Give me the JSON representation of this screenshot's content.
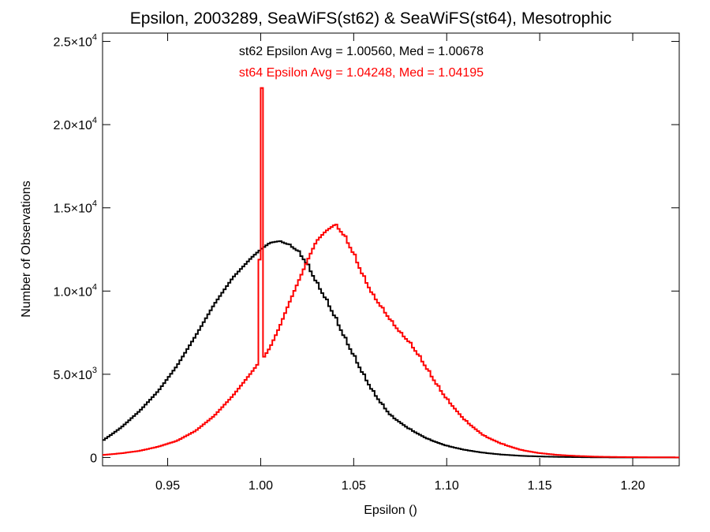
{
  "colors": {
    "st62": "#000000",
    "st64": "#ff0000",
    "axis": "#000000",
    "background": "#ffffff"
  },
  "chart_data": {
    "type": "line",
    "title": "Epsilon, 2003289, SeaWiFS(st62) & SeaWiFS(st64), Mesotrophic",
    "xlabel": "Epsilon ()",
    "ylabel": "Number of Observations",
    "xlim": [
      0.915,
      1.225
    ],
    "ylim": [
      -500,
      25500
    ],
    "x_ticks": [
      {
        "value": 0.95,
        "label": "0.95"
      },
      {
        "value": 1.0,
        "label": "1.00"
      },
      {
        "value": 1.05,
        "label": "1.05"
      },
      {
        "value": 1.1,
        "label": "1.10"
      },
      {
        "value": 1.15,
        "label": "1.15"
      },
      {
        "value": 1.2,
        "label": "1.20"
      }
    ],
    "y_ticks": [
      {
        "value": 0,
        "mantissa": "0",
        "exponent": ""
      },
      {
        "value": 5000,
        "mantissa": "5.0×10",
        "exponent": "3"
      },
      {
        "value": 10000,
        "mantissa": "1.0×10",
        "exponent": "4"
      },
      {
        "value": 15000,
        "mantissa": "1.5×10",
        "exponent": "4"
      },
      {
        "value": 20000,
        "mantissa": "2.0×10",
        "exponent": "4"
      },
      {
        "value": 25000,
        "mantissa": "2.5×10",
        "exponent": "4"
      }
    ],
    "annotations": [
      {
        "series": "st62",
        "text": "st62 Epsilon Avg = 1.00560, Med = 1.00678"
      },
      {
        "series": "st64",
        "text": "st64 Epsilon Avg = 1.04248, Med = 1.04195"
      }
    ],
    "series": [
      {
        "name": "st62",
        "color": "#000000",
        "x": [
          0.915,
          0.925,
          0.935,
          0.945,
          0.955,
          0.965,
          0.975,
          0.985,
          0.995,
          1.0,
          1.005,
          1.01,
          1.015,
          1.02,
          1.025,
          1.03,
          1.035,
          1.04,
          1.045,
          1.05,
          1.055,
          1.06,
          1.065,
          1.07,
          1.08,
          1.09,
          1.1,
          1.11,
          1.12,
          1.13,
          1.14,
          1.15,
          1.16,
          1.17,
          1.18,
          1.19,
          1.2,
          1.21,
          1.225
        ],
        "y": [
          1000,
          1800,
          2800,
          4000,
          5500,
          7300,
          9200,
          10800,
          12000,
          12500,
          12900,
          13000,
          12800,
          12400,
          11600,
          10500,
          9500,
          8400,
          7200,
          6100,
          5000,
          4000,
          3200,
          2500,
          1700,
          1100,
          700,
          450,
          280,
          170,
          100,
          60,
          35,
          20,
          10,
          5,
          3,
          2,
          0
        ]
      },
      {
        "name": "st64",
        "color": "#ff0000",
        "x": [
          0.915,
          0.925,
          0.935,
          0.945,
          0.955,
          0.965,
          0.975,
          0.985,
          0.995,
          0.999,
          1.0,
          1.001,
          1.005,
          1.01,
          1.015,
          1.02,
          1.025,
          1.03,
          1.035,
          1.04,
          1.045,
          1.05,
          1.055,
          1.06,
          1.065,
          1.07,
          1.075,
          1.08,
          1.085,
          1.09,
          1.095,
          1.1,
          1.11,
          1.12,
          1.13,
          1.14,
          1.15,
          1.16,
          1.17,
          1.18,
          1.19,
          1.2,
          1.21,
          1.225
        ],
        "y": [
          150,
          250,
          400,
          650,
          1000,
          1600,
          2500,
          3700,
          5100,
          5700,
          22200,
          5900,
          6600,
          7800,
          9200,
          10500,
          11800,
          13000,
          13600,
          14000,
          13300,
          12200,
          10900,
          9800,
          9000,
          8200,
          7500,
          6900,
          6100,
          5200,
          4300,
          3500,
          2200,
          1300,
          800,
          450,
          260,
          150,
          90,
          50,
          30,
          20,
          10,
          5
        ]
      }
    ],
    "grid": false,
    "legend": "none"
  }
}
